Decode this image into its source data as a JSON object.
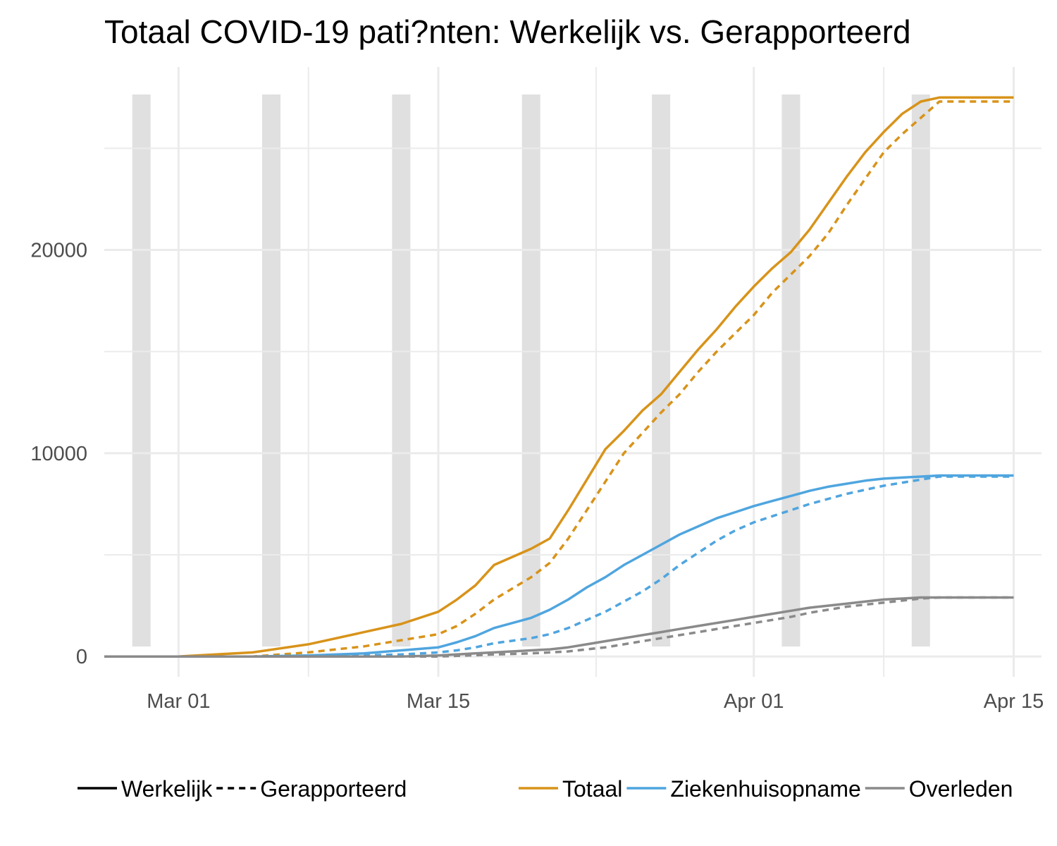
{
  "chart_data": {
    "type": "line",
    "title": "Totaal COVID-19 pati?nten: Werkelijk vs. Gerapporteerd",
    "xlabel": "",
    "ylabel": "",
    "x_ticks": [
      {
        "label": "Mar 01",
        "day": 4
      },
      {
        "label": "Mar 15",
        "day": 18
      },
      {
        "label": "Apr 01",
        "day": 35
      },
      {
        "label": "Apr 15",
        "day": 49
      }
    ],
    "x_range_days": [
      0,
      50.5
    ],
    "x_note": "day 0 = Feb 26",
    "ylim": [
      -1000,
      29000
    ],
    "y_ticks": [
      0,
      10000,
      20000
    ],
    "weekend_days": [
      2,
      9,
      16,
      23,
      30,
      37,
      44
    ],
    "legend": {
      "linetype": [
        {
          "label": "Werkelijk",
          "dash": false
        },
        {
          "label": "Gerapporteerd",
          "dash": true
        }
      ],
      "color": [
        {
          "label": "Totaal",
          "color": "#D8931A"
        },
        {
          "label": "Ziekenhuisopname",
          "color": "#4FA5DF"
        },
        {
          "label": "Overleden",
          "color": "#8A8A8A"
        }
      ]
    },
    "series": [
      {
        "name": "Totaal",
        "type": "Werkelijk",
        "color": "#D8931A",
        "dash": false,
        "x": [
          0,
          4,
          8,
          11,
          14,
          16,
          18,
          19,
          20,
          21,
          23,
          24,
          25,
          26,
          27,
          28,
          29,
          30,
          31,
          32,
          33,
          34,
          35,
          36,
          37,
          38,
          39,
          40,
          41,
          42,
          43,
          44,
          45,
          46,
          47,
          48,
          49
        ],
        "y": [
          0,
          0,
          200,
          600,
          1200,
          1600,
          2200,
          2800,
          3500,
          4500,
          5300,
          5800,
          7200,
          8700,
          10200,
          11100,
          12100,
          12900,
          14000,
          15100,
          16100,
          17200,
          18200,
          19100,
          19900,
          21000,
          22300,
          23600,
          24800,
          25800,
          26700,
          27300,
          27500,
          27500,
          27500,
          27500,
          27500
        ]
      },
      {
        "name": "Totaal",
        "type": "Gerapporteerd",
        "color": "#D8931A",
        "dash": true,
        "x": [
          0,
          4,
          8,
          11,
          14,
          16,
          18,
          19,
          20,
          21,
          23,
          24,
          25,
          26,
          27,
          28,
          29,
          30,
          31,
          32,
          33,
          34,
          35,
          36,
          37,
          38,
          39,
          40,
          41,
          42,
          43,
          44,
          45,
          46,
          47,
          48,
          49
        ],
        "y": [
          0,
          0,
          0,
          200,
          500,
          800,
          1100,
          1500,
          2100,
          2800,
          3900,
          4600,
          5800,
          7200,
          8600,
          10000,
          11000,
          12000,
          12900,
          14000,
          15000,
          15900,
          16800,
          17900,
          18800,
          19700,
          20800,
          22200,
          23500,
          24800,
          25700,
          26500,
          27300,
          27300,
          27300,
          27300,
          27300
        ]
      },
      {
        "name": "Ziekenhuisopname",
        "type": "Werkelijk",
        "color": "#4FA5DF",
        "dash": false,
        "x": [
          0,
          4,
          8,
          11,
          14,
          16,
          18,
          19,
          20,
          21,
          23,
          24,
          25,
          26,
          27,
          28,
          29,
          30,
          31,
          32,
          33,
          34,
          35,
          36,
          37,
          38,
          39,
          40,
          41,
          42,
          43,
          44,
          45,
          46,
          47,
          48,
          49
        ],
        "y": [
          0,
          0,
          0,
          50,
          150,
          300,
          450,
          700,
          1000,
          1400,
          1900,
          2300,
          2800,
          3400,
          3900,
          4500,
          5000,
          5500,
          6000,
          6400,
          6800,
          7100,
          7400,
          7650,
          7900,
          8150,
          8350,
          8500,
          8650,
          8750,
          8800,
          8850,
          8900,
          8900,
          8900,
          8900,
          8900
        ]
      },
      {
        "name": "Ziekenhuisopname",
        "type": "Gerapporteerd",
        "color": "#4FA5DF",
        "dash": true,
        "x": [
          0,
          4,
          8,
          11,
          14,
          16,
          18,
          19,
          20,
          21,
          23,
          24,
          25,
          26,
          27,
          28,
          29,
          30,
          31,
          32,
          33,
          34,
          35,
          36,
          37,
          38,
          39,
          40,
          41,
          42,
          43,
          44,
          45,
          46,
          47,
          48,
          49
        ],
        "y": [
          0,
          0,
          0,
          0,
          50,
          100,
          200,
          300,
          450,
          650,
          900,
          1100,
          1400,
          1800,
          2200,
          2700,
          3200,
          3800,
          4500,
          5100,
          5700,
          6200,
          6600,
          6900,
          7200,
          7500,
          7750,
          8000,
          8200,
          8400,
          8550,
          8700,
          8850,
          8850,
          8850,
          8850,
          8850
        ]
      },
      {
        "name": "Overleden",
        "type": "Werkelijk",
        "color": "#8A8A8A",
        "dash": false,
        "x": [
          0,
          4,
          8,
          11,
          14,
          16,
          18,
          19,
          20,
          21,
          23,
          24,
          25,
          26,
          27,
          28,
          29,
          30,
          31,
          32,
          33,
          34,
          35,
          36,
          37,
          38,
          39,
          40,
          41,
          42,
          43,
          44,
          45,
          46,
          47,
          48,
          49
        ],
        "y": [
          0,
          0,
          0,
          0,
          0,
          0,
          50,
          100,
          150,
          200,
          300,
          350,
          450,
          600,
          750,
          900,
          1050,
          1200,
          1350,
          1500,
          1650,
          1800,
          1950,
          2100,
          2250,
          2400,
          2500,
          2600,
          2700,
          2800,
          2850,
          2900,
          2900,
          2900,
          2900,
          2900,
          2900
        ]
      },
      {
        "name": "Overleden",
        "type": "Gerapporteerd",
        "color": "#8A8A8A",
        "dash": true,
        "x": [
          0,
          4,
          8,
          11,
          14,
          16,
          18,
          19,
          20,
          21,
          23,
          24,
          25,
          26,
          27,
          28,
          29,
          30,
          31,
          32,
          33,
          34,
          35,
          36,
          37,
          38,
          39,
          40,
          41,
          42,
          43,
          44,
          45,
          46,
          47,
          48,
          49
        ],
        "y": [
          0,
          0,
          0,
          0,
          0,
          0,
          0,
          30,
          60,
          100,
          150,
          200,
          250,
          350,
          450,
          600,
          750,
          900,
          1050,
          1200,
          1350,
          1500,
          1650,
          1800,
          1950,
          2150,
          2300,
          2450,
          2550,
          2650,
          2750,
          2850,
          2900,
          2900,
          2900,
          2900,
          2900
        ]
      }
    ]
  }
}
